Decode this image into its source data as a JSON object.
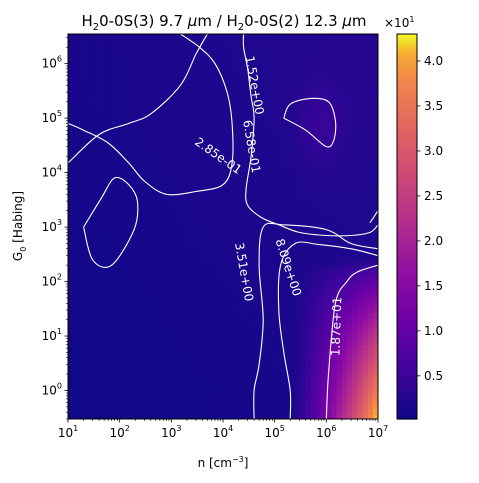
{
  "chart_data": {
    "type": "heatmap",
    "title": "H$_2$0-0S(3) 9.7 $\\mu$m / H$_2$0-0S(2) 12.3 $\\mu$m",
    "title_parts": {
      "a_main": "H",
      "a_sub": "2",
      "a_rest": "0-0S(3) 9.7 ",
      "a_mu": "μ",
      "a_unit": "m / ",
      "b_main": "H",
      "b_sub": "2",
      "b_rest": "0-0S(2) 12.3 ",
      "b_mu": "μ",
      "b_unit": "m"
    },
    "xlabel": {
      "main": "n [cm",
      "sup": "−3",
      "end": "]"
    },
    "ylabel": {
      "main": "G",
      "sub": "0",
      "rest": " [Habing]"
    },
    "x_scale": "log",
    "y_scale": "log",
    "xlim": [
      10,
      10000000
    ],
    "ylim": [
      0.3,
      3500000
    ],
    "x_ticks": [
      {
        "value": 10,
        "base": "10",
        "exp": "1"
      },
      {
        "value": 100,
        "base": "10",
        "exp": "2"
      },
      {
        "value": 1000,
        "base": "10",
        "exp": "3"
      },
      {
        "value": 10000,
        "base": "10",
        "exp": "4"
      },
      {
        "value": 100000,
        "base": "10",
        "exp": "5"
      },
      {
        "value": 1000000,
        "base": "10",
        "exp": "6"
      },
      {
        "value": 10000000,
        "base": "10",
        "exp": "7"
      }
    ],
    "y_ticks": [
      {
        "value": 1,
        "base": "10",
        "exp": "0"
      },
      {
        "value": 10,
        "base": "10",
        "exp": "1"
      },
      {
        "value": 100,
        "base": "10",
        "exp": "2"
      },
      {
        "value": 1000,
        "base": "10",
        "exp": "3"
      },
      {
        "value": 10000,
        "base": "10",
        "exp": "4"
      },
      {
        "value": 100000,
        "base": "10",
        "exp": "5"
      },
      {
        "value": 1000000,
        "base": "10",
        "exp": "6"
      }
    ],
    "colormap": "plasma",
    "colorbar": {
      "range": [
        0.02,
        4.3
      ],
      "ticks": [
        "0.5",
        "1.0",
        "1.5",
        "2.0",
        "2.5",
        "3.0",
        "3.5",
        "4.0"
      ],
      "multiplier": {
        "base": "×10",
        "exp": "1"
      }
    },
    "contours": [
      {
        "label": "2.85e-01",
        "label_x": 8000,
        "label_y": 20000,
        "rotation": 35,
        "lines": [
          [
            [
              5000,
              3500000
            ],
            [
              3000,
              1500000
            ],
            [
              1500,
              400000
            ],
            [
              400,
              120000
            ],
            [
              150,
              80000
            ],
            [
              40,
              50000
            ],
            [
              10,
              15000
            ]
          ]
        ]
      },
      {
        "label": "6.58e-01",
        "label_x": 35000,
        "label_y": 30000,
        "rotation": 80,
        "lines": [
          [
            [
              1500,
              3500000
            ],
            [
              3500,
              2000000
            ],
            [
              7000,
              1000000
            ],
            [
              12000,
              300000
            ],
            [
              15000,
              80000
            ],
            [
              15000,
              15000
            ],
            [
              10000,
              6000
            ],
            [
              3000,
              4500
            ],
            [
              800,
              4000
            ],
            [
              300,
              7000
            ],
            [
              150,
              15000
            ],
            [
              60,
              35000
            ],
            [
              20,
              60000
            ],
            [
              10,
              80000
            ]
          ]
        ]
      },
      {
        "label": "1.52e+00",
        "label_x": 40000,
        "label_y": 400000,
        "rotation": 80,
        "lines": [
          [
            [
              25000,
              3500000
            ],
            [
              25000,
              2000000
            ],
            [
              30000,
              800000
            ],
            [
              35000,
              250000
            ],
            [
              40000,
              100000
            ],
            [
              35000,
              20000
            ],
            [
              28000,
              5000
            ],
            [
              30000,
              2500
            ],
            [
              55000,
              1500
            ],
            [
              120000,
              1100
            ],
            [
              300000,
              800
            ],
            [
              1000000,
              700
            ],
            [
              3000000,
              700
            ],
            [
              7000000,
              800
            ],
            [
              10000000,
              1100
            ]
          ],
          [
            [
              150000,
              100000
            ],
            [
              400000,
              60000
            ],
            [
              1000000,
              30000
            ],
            [
              1400000,
              40000
            ],
            [
              1500000,
              90000
            ],
            [
              1100000,
              200000
            ],
            [
              500000,
              230000
            ],
            [
              200000,
              180000
            ],
            [
              150000,
              100000
            ]
          ],
          [
            [
              20,
              1000
            ],
            [
              45,
              3500
            ],
            [
              80,
              8000
            ],
            [
              150,
              6000
            ],
            [
              220,
              3000
            ],
            [
              190,
              900
            ],
            [
              70,
              200
            ],
            [
              30,
              250
            ],
            [
              20,
              1000
            ]
          ],
          [
            [
              7000000,
              1200
            ],
            [
              10000000,
              2000
            ]
          ]
        ]
      },
      {
        "label": "3.51e+00",
        "label_x": 25000,
        "label_y": 150,
        "rotation": 80,
        "lines": [
          [
            [
              40000,
              0.3
            ],
            [
              40000,
              1
            ],
            [
              50000,
              3
            ],
            [
              60000,
              20
            ],
            [
              50000,
              200
            ],
            [
              60000,
              1000
            ],
            [
              150000,
              1100
            ],
            [
              1000000,
              900
            ],
            [
              3000000,
              500
            ],
            [
              10000000,
              400
            ]
          ]
        ]
      },
      {
        "label": "8.09e+00",
        "label_x": 180000,
        "label_y": 180,
        "rotation": 72,
        "lines": [
          [
            [
              200000,
              0.3
            ],
            [
              200000,
              1
            ],
            [
              150000,
              5
            ],
            [
              120000,
              30
            ],
            [
              130000,
              200
            ],
            [
              250000,
              500
            ],
            [
              700000,
              480
            ],
            [
              3000000,
              400
            ],
            [
              10000000,
              300
            ]
          ]
        ]
      },
      {
        "label": "1.87e+01",
        "label_x": 1600000,
        "label_y": 15,
        "rotation": -88,
        "lines": [
          [
            [
              1000000,
              0.3
            ],
            [
              1100000,
              2
            ],
            [
              1500000,
              40
            ],
            [
              2500000,
              100
            ],
            [
              4000000,
              150
            ],
            [
              10000000,
              200
            ]
          ]
        ]
      }
    ]
  }
}
